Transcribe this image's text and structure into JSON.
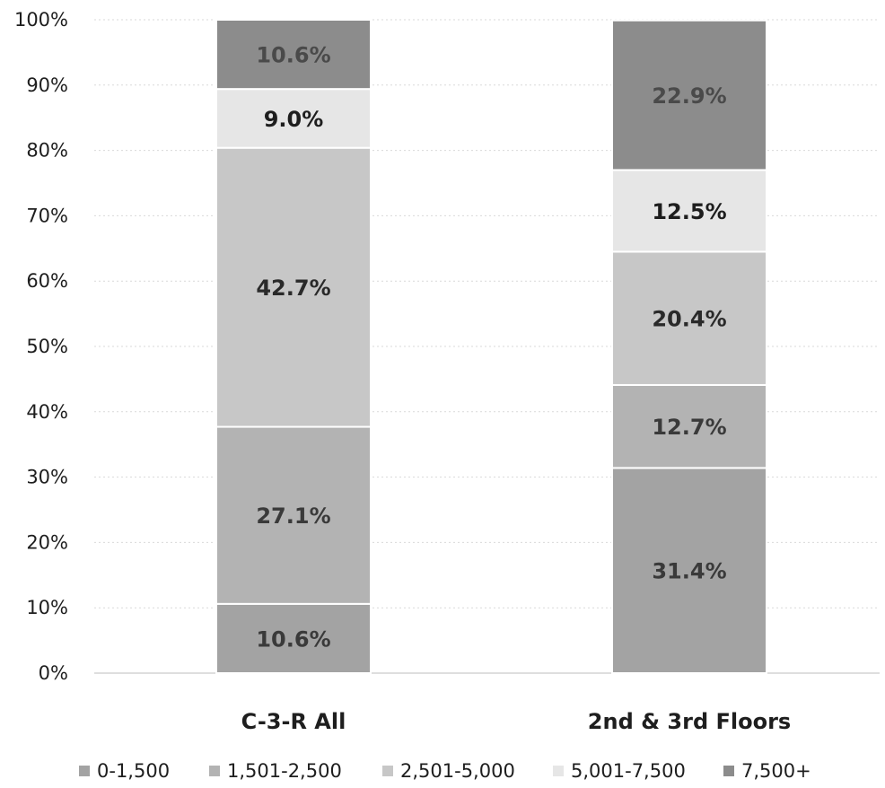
{
  "chart_data": {
    "type": "bar",
    "stacked": true,
    "percent": true,
    "categories": [
      "C-3-R All",
      "2nd & 3rd Floors"
    ],
    "series": [
      {
        "name": "0-1,500",
        "values": [
          10.6,
          31.4
        ],
        "color": "#a3a3a3",
        "label_color": "#3a3a3a"
      },
      {
        "name": "1,501-2,500",
        "values": [
          27.1,
          12.7
        ],
        "color": "#b3b3b3",
        "label_color": "#3a3a3a"
      },
      {
        "name": "2,501-5,000",
        "values": [
          42.7,
          20.4
        ],
        "color": "#c7c7c7",
        "label_color": "#2a2a2a"
      },
      {
        "name": "5,001-7,500",
        "values": [
          9.0,
          12.5
        ],
        "color": "#e6e6e6",
        "label_color": "#1e1e1e"
      },
      {
        "name": "7,500+",
        "values": [
          10.6,
          22.9
        ],
        "color": "#8c8c8c",
        "label_color": "#4a4a4a"
      }
    ],
    "data_labels": [
      [
        "10.6%",
        "31.4%"
      ],
      [
        "27.1%",
        "12.7%"
      ],
      [
        "42.7%",
        "20.4%"
      ],
      [
        "9.0%",
        "12.5%"
      ],
      [
        "10.6%",
        "22.9%"
      ]
    ],
    "yticks": [
      "0%",
      "10%",
      "20%",
      "30%",
      "40%",
      "50%",
      "60%",
      "70%",
      "80%",
      "90%",
      "100%"
    ],
    "ylim": [
      0,
      100
    ],
    "grid": true,
    "legend": "bottom",
    "title": "",
    "xlabel": "",
    "ylabel": ""
  }
}
